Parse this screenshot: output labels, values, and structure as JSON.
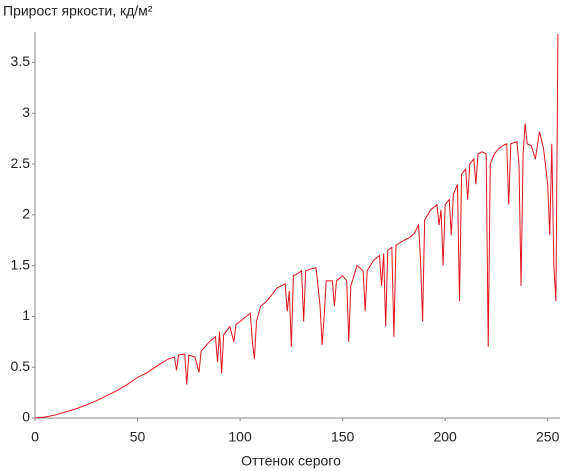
{
  "chart_data": {
    "type": "line",
    "title": "Прирост яркости, кд/м²",
    "xlabel": "Оттенок серого",
    "color": "#e0151e",
    "x": [
      0,
      5,
      10,
      15,
      20,
      25,
      30,
      35,
      40,
      45,
      50,
      55,
      60,
      65,
      68,
      69,
      70,
      73,
      74,
      75,
      78,
      80,
      81,
      85,
      88,
      89,
      90,
      91,
      92,
      95,
      97,
      98,
      100,
      103,
      105,
      106,
      107,
      108,
      110,
      113,
      115,
      118,
      120,
      122,
      123,
      124,
      125,
      126,
      128,
      130,
      131,
      132,
      135,
      137,
      138,
      139,
      140,
      141,
      142,
      145,
      146,
      147,
      150,
      152,
      153,
      154,
      157,
      160,
      161,
      162,
      165,
      168,
      169,
      170,
      171,
      172,
      174,
      175,
      176,
      180,
      183,
      185,
      187,
      188,
      189,
      190,
      193,
      196,
      197,
      198,
      199,
      200,
      202,
      203,
      204,
      206,
      207,
      208,
      210,
      211,
      212,
      214,
      215,
      216,
      218,
      220,
      221,
      222,
      224,
      226,
      228,
      230,
      231,
      232,
      235,
      236,
      237,
      238,
      239,
      240,
      242,
      244,
      246,
      248,
      250,
      251,
      252,
      253,
      254,
      255
    ],
    "values": [
      0,
      0.01,
      0.03,
      0.06,
      0.09,
      0.13,
      0.17,
      0.22,
      0.27,
      0.33,
      0.4,
      0.45,
      0.52,
      0.58,
      0.6,
      0.47,
      0.62,
      0.63,
      0.33,
      0.62,
      0.6,
      0.45,
      0.66,
      0.75,
      0.8,
      0.55,
      0.85,
      0.44,
      0.82,
      0.9,
      0.75,
      0.92,
      0.95,
      1.0,
      1.03,
      0.75,
      0.58,
      0.95,
      1.1,
      1.15,
      1.2,
      1.28,
      1.3,
      1.32,
      1.05,
      1.25,
      0.7,
      1.4,
      1.42,
      1.45,
      0.95,
      1.45,
      1.47,
      1.48,
      1.3,
      1.1,
      0.72,
      1.0,
      1.35,
      1.35,
      1.1,
      1.35,
      1.4,
      1.35,
      0.75,
      1.3,
      1.5,
      1.45,
      1.05,
      1.45,
      1.55,
      1.6,
      1.3,
      1.62,
      0.9,
      1.65,
      1.68,
      0.8,
      1.7,
      1.75,
      1.78,
      1.82,
      1.9,
      1.55,
      0.95,
      1.95,
      2.05,
      2.1,
      1.9,
      2.05,
      1.5,
      2.1,
      2.15,
      1.8,
      2.2,
      2.3,
      1.15,
      2.4,
      2.45,
      2.15,
      2.5,
      2.55,
      2.3,
      2.6,
      2.62,
      2.6,
      0.7,
      2.5,
      2.6,
      2.65,
      2.68,
      2.7,
      2.1,
      2.7,
      2.72,
      2.5,
      1.3,
      2.6,
      2.9,
      2.7,
      2.68,
      2.55,
      2.82,
      2.65,
      2.3,
      1.8,
      2.7,
      1.5,
      1.15,
      3.78
    ],
    "xlim": [
      0,
      256
    ],
    "xticks": [
      0,
      50,
      100,
      150,
      200,
      250
    ],
    "ylim": [
      0,
      3.8
    ],
    "yticks": [
      0,
      0.5,
      1,
      1.5,
      2,
      2.5,
      3,
      3.5
    ],
    "grid": false
  }
}
